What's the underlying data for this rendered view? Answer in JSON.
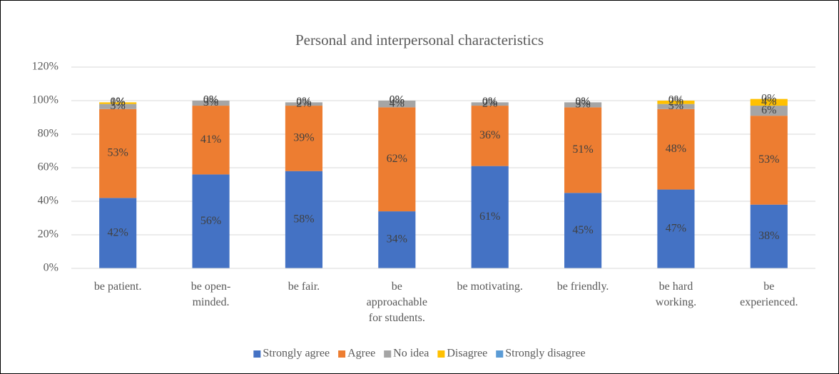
{
  "chart_data": {
    "type": "stacked_bar",
    "title": "Personal and interpersonal characteristics",
    "categories": [
      "be patient.",
      "be open-minded.",
      "be fair.",
      "be approachable for students.",
      "be motivating.",
      "be friendly.",
      "be hard working.",
      "be experienced."
    ],
    "series": [
      {
        "name": "Strongly agree",
        "color": "#4472c4",
        "values": [
          42,
          56,
          58,
          34,
          61,
          45,
          47,
          38
        ],
        "value_labels": [
          "42%",
          "56%",
          "58%",
          "34%",
          "61%",
          "45%",
          "47%",
          "38%"
        ]
      },
      {
        "name": "Agree",
        "color": "#ed7d31",
        "values": [
          53,
          41,
          39,
          62,
          36,
          51,
          48,
          53
        ],
        "value_labels": [
          "53%",
          "41%",
          "39%",
          "62%",
          "36%",
          "51%",
          "48%",
          "53%"
        ]
      },
      {
        "name": "No idea",
        "color": "#a5a5a5",
        "values": [
          3,
          3,
          2,
          4,
          2,
          3,
          3,
          6
        ],
        "value_labels": [
          "3%",
          "3%",
          "2%",
          "4%",
          "2%",
          "3%",
          "3%",
          "6%"
        ]
      },
      {
        "name": "Disagree",
        "color": "#ffc000",
        "values": [
          1,
          0,
          0,
          0,
          0,
          0,
          2,
          4
        ],
        "value_labels": [
          "1%",
          "0%",
          "0%",
          "0%",
          "0%",
          "0%",
          "2%",
          "4%"
        ]
      },
      {
        "name": "Strongly disagree",
        "color": "#5b9bd5",
        "values": [
          0,
          0,
          0,
          0,
          0,
          0,
          0,
          0
        ],
        "value_labels": [
          "0%",
          "0%",
          "0%",
          "0%",
          "0%",
          "0%",
          "0%",
          "0%"
        ]
      }
    ],
    "ylim": [
      0,
      120
    ],
    "yticks": [
      {
        "value": 0,
        "label": "0%"
      },
      {
        "value": 20,
        "label": "20%"
      },
      {
        "value": 40,
        "label": "40%"
      },
      {
        "value": 60,
        "label": "60%"
      },
      {
        "value": 80,
        "label": "80%"
      },
      {
        "value": 100,
        "label": "100%"
      },
      {
        "value": 120,
        "label": "120%"
      }
    ],
    "grid": true,
    "legend": "bottom"
  }
}
